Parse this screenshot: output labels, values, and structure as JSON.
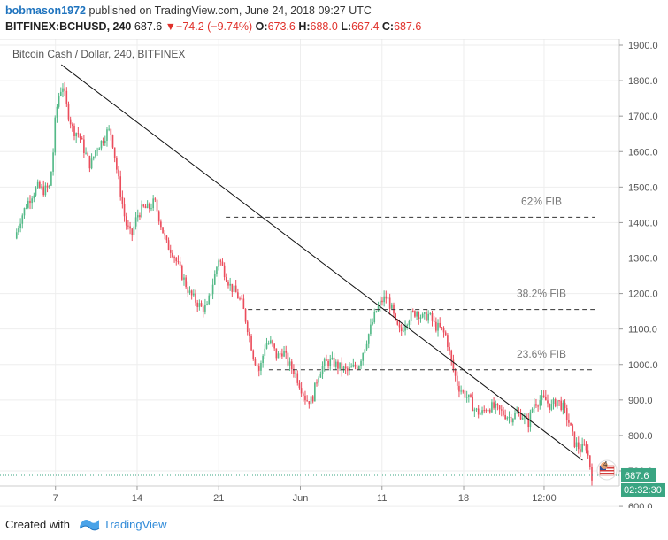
{
  "header": {
    "author": "bobmason1972",
    "published_text": "published on TradingView.com, June 24, 2018 09:27 UTC",
    "symbol": "BITFINEX:BCHUSD, 240",
    "last": "687.6",
    "change_arrow": "▼",
    "change": "−74.2 (−9.74%)",
    "o_label": "O:",
    "o_value": "673.6",
    "h_label": "H:",
    "h_value": "688.0",
    "l_label": "L:",
    "l_value": "667.4",
    "c_label": "C:",
    "c_value": "687.6"
  },
  "chart_data": {
    "type": "candlestick",
    "title": "Bitcoin Cash / Dollar, 240, BITFINEX",
    "ylim": [
      590,
      1920
    ],
    "yticks": [
      "1900.0",
      "1800.0",
      "1700.0",
      "1600.0",
      "1500.0",
      "1400.0",
      "1300.0",
      "1200.0",
      "1100.0",
      "1000.0",
      "900.0",
      "800.0",
      "700.0",
      "600.0"
    ],
    "xticks": [
      "7",
      "14",
      "21",
      "Jun",
      "11",
      "18",
      "12:00"
    ],
    "x_positions": [
      4,
      11,
      18,
      25,
      32,
      39,
      45.9
    ],
    "close_path": [
      [
        0.5,
        1355
      ],
      [
        1,
        1410
      ],
      [
        1.5,
        1450
      ],
      [
        2,
        1480
      ],
      [
        2.5,
        1500
      ],
      [
        3,
        1490
      ],
      [
        3.5,
        1500
      ],
      [
        3.8,
        1600
      ],
      [
        4,
        1700
      ],
      [
        4.3,
        1760
      ],
      [
        4.6,
        1790
      ],
      [
        5,
        1720
      ],
      [
        5.5,
        1660
      ],
      [
        6,
        1650
      ],
      [
        6.5,
        1600
      ],
      [
        7,
        1560
      ],
      [
        7.5,
        1610
      ],
      [
        8,
        1630
      ],
      [
        8.5,
        1660
      ],
      [
        8.8,
        1650
      ],
      [
        9.2,
        1560
      ],
      [
        9.6,
        1480
      ],
      [
        10,
        1400
      ],
      [
        10.5,
        1360
      ],
      [
        11,
        1420
      ],
      [
        11.5,
        1440
      ],
      [
        12,
        1440
      ],
      [
        12.5,
        1460
      ],
      [
        13,
        1400
      ],
      [
        13.5,
        1340
      ],
      [
        14,
        1320
      ],
      [
        14.5,
        1280
      ],
      [
        15,
        1240
      ],
      [
        15.5,
        1200
      ],
      [
        16,
        1180
      ],
      [
        16.5,
        1160
      ],
      [
        17,
        1160
      ],
      [
        17.5,
        1230
      ],
      [
        18,
        1300
      ],
      [
        18.5,
        1260
      ],
      [
        19,
        1220
      ],
      [
        19.5,
        1200
      ],
      [
        20,
        1170
      ],
      [
        20.5,
        1100
      ],
      [
        21,
        1020
      ],
      [
        21.5,
        980
      ],
      [
        22,
        1060
      ],
      [
        22.5,
        1060
      ],
      [
        23,
        1020
      ],
      [
        23.5,
        1040
      ],
      [
        24,
        1000
      ],
      [
        24.5,
        980
      ],
      [
        25,
        940
      ],
      [
        25.5,
        900
      ],
      [
        26,
        900
      ],
      [
        26.5,
        970
      ],
      [
        27,
        1000
      ],
      [
        27.5,
        1010
      ],
      [
        28,
        1000
      ],
      [
        28.5,
        990
      ],
      [
        29,
        980
      ],
      [
        29.5,
        990
      ],
      [
        30,
        1000
      ],
      [
        30.5,
        1050
      ],
      [
        31,
        1100
      ],
      [
        31.5,
        1150
      ],
      [
        32,
        1180
      ],
      [
        32.4,
        1190
      ],
      [
        32.8,
        1160
      ],
      [
        33.2,
        1110
      ],
      [
        33.6,
        1090
      ],
      [
        34,
        1120
      ],
      [
        34.5,
        1140
      ],
      [
        35,
        1150
      ],
      [
        35.5,
        1130
      ],
      [
        36,
        1140
      ],
      [
        36.5,
        1110
      ],
      [
        37,
        1100
      ],
      [
        37.5,
        1080
      ],
      [
        38,
        1000
      ],
      [
        38.5,
        940
      ],
      [
        39,
        920
      ],
      [
        39.5,
        900
      ],
      [
        40,
        870
      ],
      [
        40.5,
        860
      ],
      [
        41,
        880
      ],
      [
        41.5,
        880
      ],
      [
        42,
        870
      ],
      [
        42.5,
        860
      ],
      [
        43,
        850
      ],
      [
        43.5,
        860
      ],
      [
        44,
        860
      ],
      [
        44.5,
        830
      ],
      [
        45,
        890
      ],
      [
        45.5,
        900
      ],
      [
        46,
        900
      ],
      [
        46.5,
        880
      ],
      [
        47,
        900
      ],
      [
        47.5,
        880
      ],
      [
        48,
        840
      ],
      [
        48.5,
        780
      ],
      [
        49,
        760
      ],
      [
        49.5,
        770
      ],
      [
        50,
        687.6
      ]
    ],
    "annotations": [
      {
        "label": "62% FIB",
        "y": 1415
      },
      {
        "label": "38.2% FIB",
        "y": 1155
      },
      {
        "label": "23.6% FIB",
        "y": 985
      }
    ],
    "trendline": {
      "from": [
        4.5,
        1845
      ],
      "to": [
        49.2,
        730
      ]
    },
    "last_price_label": "687.6",
    "countdown_label": "02:32:30",
    "colors": {
      "up": "#53b987",
      "down": "#eb4d5c",
      "last": "#3aa582",
      "grid": "#eeeeee"
    }
  },
  "footer": {
    "created_with": "Created with",
    "brand": "TradingView"
  },
  "icons": {
    "brand": "tradingview-logo-icon",
    "flag": "us-flag-icon"
  }
}
